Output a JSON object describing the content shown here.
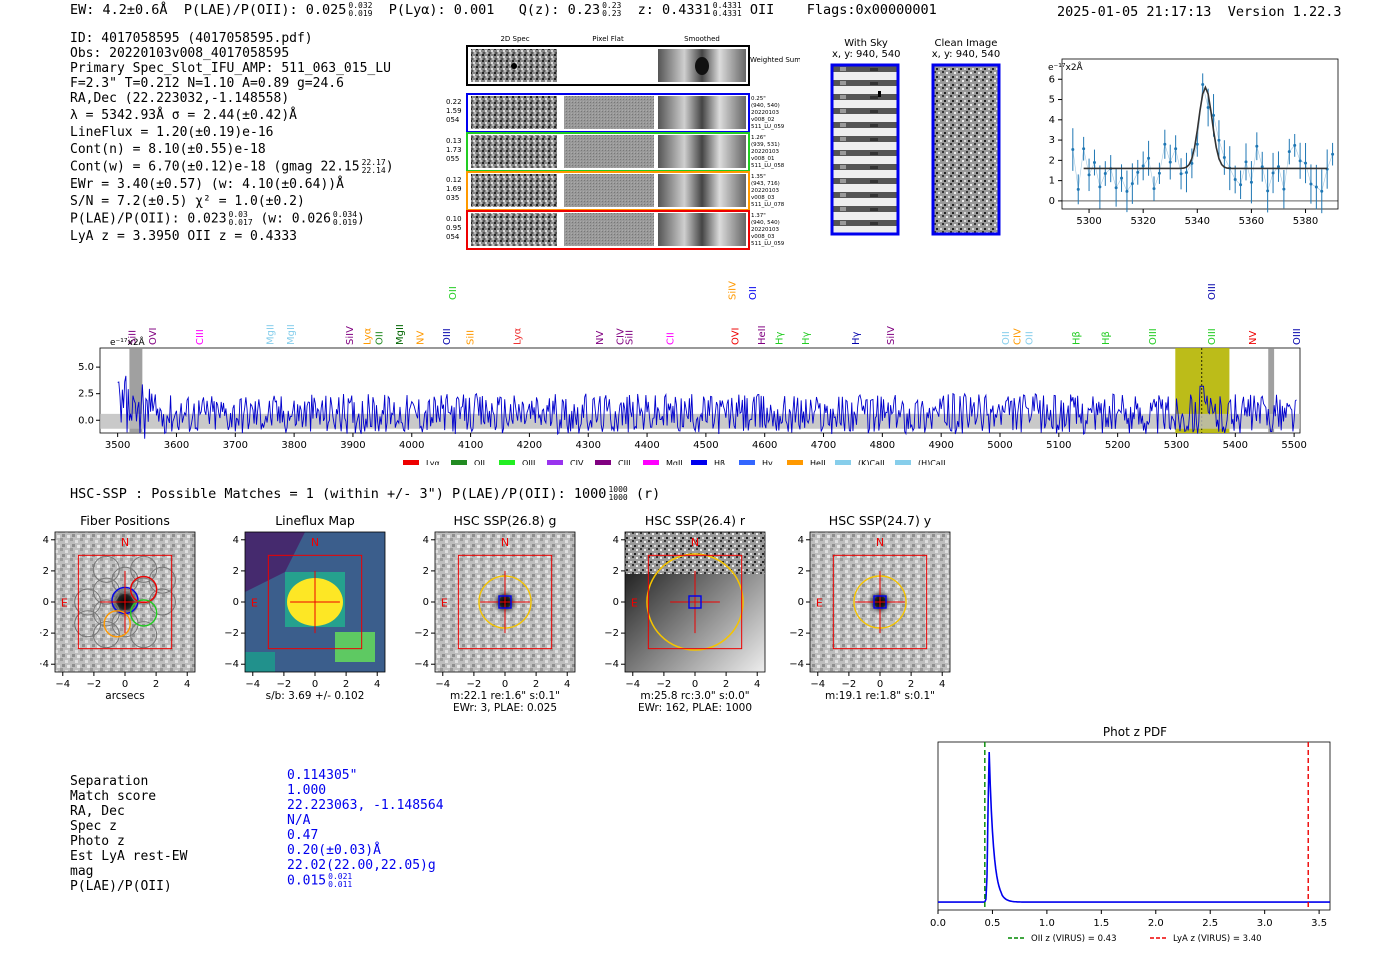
{
  "header": {
    "ew": "EW: 4.2±0.6Å",
    "plae_label": "P(LAE)/P(OII): 0.025",
    "plae_hi": "0.032",
    "plae_lo": "0.019",
    "plya": "P(Lyα): 0.001",
    "qz_label": "Q(z): 0.23",
    "qz_hi": "0.23",
    "qz_lo": "0.23",
    "z_label": "z: 0.4331",
    "z_hi": "0.4331",
    "z_lo": "0.4331",
    "z_line": "OII",
    "flags": "Flags:0x00000001",
    "timestamp": "2025-01-05 21:17:13",
    "version": "Version 1.22.3"
  },
  "detection": {
    "id": "ID: 4017058595 (4017058595.pdf)",
    "obs": "Obs: 20220103v008_4017058595",
    "primary": "Primary Spec_Slot_IFU_AMP: 511_063_015_LU",
    "params": "F=2.3\"  T=0.212  N=1.10  A=0.89  g=24.6",
    "radec": "RA,Dec (22.223032,-1.148558)",
    "lambda": "λ = 5342.93Å  σ = 2.44(±0.42)Å",
    "lineflux": "LineFlux = 1.20(±0.19)e-16",
    "contn": "Cont(n) = 8.10(±0.55)e-18",
    "contw_label": "Cont(w) = 6.70(±0.12)e-18 (gmag 22.15",
    "contw_hi": "22.17",
    "contw_lo": "22.14",
    "ewr": "EWr = 3.40(±0.57) (w: 4.10(±0.64))Å",
    "sn": "S/N = 7.2(±0.5)  χ² = 1.0(±0.2)",
    "plae_label": "P(LAE)/P(OII): 0.023",
    "plae_hi": "0.03",
    "plae_lo": "0.017",
    "plae_w_label": "(w: 0.026",
    "plae_w_hi": "0.034",
    "plae_w_lo": "0.019",
    "lya_oii": "LyA z = 3.3950  OII z = 0.4333"
  },
  "cutouts": {
    "col_2d": "2D Spec",
    "col_flat": "Pixel Flat",
    "col_smooth": "Smoothed",
    "weighted_sum": "Weighted Sum",
    "rows": [
      {
        "left": [
          "0.22",
          "1.59",
          "054"
        ],
        "right": [
          "0.25\"",
          "(940, 540)",
          "20220103",
          "v008_02",
          "511_LU_059"
        ],
        "color": "#0000ee"
      },
      {
        "left": [
          "0.13",
          "1.73",
          "055"
        ],
        "right": [
          "1.26\"",
          "(939, 531)",
          "20220103",
          "v008_01",
          "511_LU_058"
        ],
        "color": "#22cc22"
      },
      {
        "left": [
          "0.12",
          "1.69",
          "035"
        ],
        "right": [
          "1.35\"",
          "(943, 716)",
          "20220103",
          "v008_03",
          "511_LU_078"
        ],
        "color": "#ff9900"
      },
      {
        "left": [
          "0.10",
          "0.95",
          "054"
        ],
        "right": [
          "1.37\"",
          "(940, 540)",
          "20220103",
          "v008_03",
          "511_LU_059"
        ],
        "color": "#ee0000"
      }
    ]
  },
  "sky": {
    "with_sky_title": "With Sky",
    "with_sky_coords": "x, y: 940, 540",
    "clean_title": "Clean Image",
    "clean_coords": "x, y: 940, 540"
  },
  "zoom_spectrum": {
    "ylabel": "e⁻¹⁷x2Å",
    "xticks": [
      "5300",
      "5320",
      "5340",
      "5360",
      "5380"
    ],
    "yticks": [
      "0",
      "1",
      "2",
      "3",
      "4",
      "5",
      "6"
    ]
  },
  "full_spectrum": {
    "ylabel": "e⁻¹⁷x2Å",
    "xticks": [
      "3500",
      "3600",
      "3700",
      "3800",
      "3900",
      "4000",
      "4100",
      "4200",
      "4300",
      "4400",
      "4500",
      "4600",
      "4700",
      "4800",
      "4900",
      "5000",
      "5100",
      "5200",
      "5300",
      "5400",
      "5500"
    ],
    "yticks": [
      "0.0",
      "2.5",
      "5.0"
    ],
    "line_labels": [
      {
        "text": "SiII",
        "color": "#800080"
      },
      {
        "text": "OVI",
        "color": "#800080"
      },
      {
        "text": "CIII",
        "color": "#ff00ff"
      },
      {
        "text": "MgII",
        "color": "#87ceeb"
      },
      {
        "text": "MgII",
        "color": "#87ceeb"
      },
      {
        "text": "SiIV",
        "color": "#800080"
      },
      {
        "text": "Lyα",
        "color": "#ff9900"
      },
      {
        "text": "OII",
        "color": "#228b22"
      },
      {
        "text": "MgII",
        "color": "#006400"
      },
      {
        "text": "NV",
        "color": "#ff9900"
      },
      {
        "text": "OIII",
        "color": "#0000aa"
      },
      {
        "text": "SiII",
        "color": "#ff9900"
      },
      {
        "text": "Lyα",
        "color": "#ee3333"
      },
      {
        "text": "NV",
        "color": "#800080"
      },
      {
        "text": "CIV",
        "color": "#800080"
      },
      {
        "text": "SiII",
        "color": "#800080"
      },
      {
        "text": "CII",
        "color": "#ff00ff"
      },
      {
        "text": "OVI",
        "color": "#ee0000"
      },
      {
        "text": "HeII",
        "color": "#800080"
      },
      {
        "text": "Hγ",
        "color": "#22cc22"
      },
      {
        "text": "Hγ",
        "color": "#22cc22"
      },
      {
        "text": "Hγ",
        "color": "#0000aa"
      },
      {
        "text": "SiIV",
        "color": "#800080"
      },
      {
        "text": "OII",
        "color": "#87ceeb"
      },
      {
        "text": "CIV",
        "color": "#ff9900"
      },
      {
        "text": "OII",
        "color": "#87ceeb"
      },
      {
        "text": "Hβ",
        "color": "#22cc22"
      },
      {
        "text": "Hβ",
        "color": "#22cc22"
      },
      {
        "text": "OIII",
        "color": "#22cc22"
      },
      {
        "text": "OIII",
        "color": "#22cc22"
      },
      {
        "text": "NV",
        "color": "#ee0000"
      },
      {
        "text": "OIII",
        "color": "#0000aa"
      }
    ],
    "upper_labels": [
      {
        "text": "OII",
        "color": "#22cc22"
      },
      {
        "text": "SiIV",
        "color": "#ff9900"
      },
      {
        "text": "OII",
        "color": "#0000ee"
      },
      {
        "text": "OIII",
        "color": "#0000aa"
      }
    ],
    "legend": [
      {
        "text": "Lyα",
        "color": "#ee0000"
      },
      {
        "text": "OII",
        "color": "#228b22"
      },
      {
        "text": "OIII",
        "color": "#22ee22"
      },
      {
        "text": "CIV",
        "color": "#9933ee"
      },
      {
        "text": "CIII",
        "color": "#800080"
      },
      {
        "text": "MgII",
        "color": "#ff00ff"
      },
      {
        "text": "Hβ",
        "color": "#0000ee"
      },
      {
        "text": "Hγ",
        "color": "#3366ff"
      },
      {
        "text": "HeII",
        "color": "#ff9900"
      },
      {
        "text": "(K)CaII",
        "color": "#87ceeb"
      },
      {
        "text": "(H)CaII",
        "color": "#87ceeb"
      }
    ]
  },
  "hsc": {
    "summary_label": "HSC-SSP : Possible Matches = 1 (within +/- 3\")  P(LAE)/P(OII): 1000",
    "summary_hi": "1000",
    "summary_lo": "1000",
    "summary_tail": "(r)",
    "axis_ticks": [
      "−4",
      "−2",
      "0",
      "2",
      "4"
    ],
    "axis_yticks": [
      "4",
      "2",
      "0",
      "−2",
      "−4"
    ],
    "panels": [
      {
        "title": "Fiber Positions",
        "caption1": "arcsecs",
        "caption2": ""
      },
      {
        "title": "Lineflux Map",
        "caption1": "s/b: 3.69 +/- 0.102",
        "caption2": ""
      },
      {
        "title": "HSC SSP(26.8) g",
        "caption1": "m:22.1  re:1.6\"  s:0.1\"",
        "caption2": "EWr: 3, PLAE: 0.025"
      },
      {
        "title": "HSC SSP(26.4) r",
        "caption1": "m:25.8 rc:3.0\"  s:0.0\"",
        "caption2": "EWr: 162, PLAE: 1000"
      },
      {
        "title": "HSC SSP(24.7) y",
        "caption1": "m:19.1  re:1.8\"  s:0.1\"",
        "caption2": ""
      }
    ],
    "compass_n": "N",
    "compass_e": "E"
  },
  "match_table": {
    "labels": [
      "Separation",
      "Match score",
      "RA, Dec",
      "Spec z",
      "Photo z",
      "Est LyA rest-EW",
      "mag",
      "P(LAE)/P(OII)"
    ],
    "values": [
      "0.114305\"",
      "1.000",
      "22.223063, -1.148564",
      "N/A",
      "0.47",
      "0.20(±0.03)Å",
      "22.02(22.00,22.05)g",
      "0.015"
    ],
    "plae_hi": "0.021",
    "plae_lo": "0.011"
  },
  "photz": {
    "title": "Phot z PDF",
    "xticks": [
      "0.0",
      "0.5",
      "1.0",
      "1.5",
      "2.0",
      "2.5",
      "3.0",
      "3.5"
    ],
    "legend_oii": "OII z (VIRUS) = 0.43",
    "legend_lya": "LyA z (VIRUS) = 3.40",
    "oii_z": 0.43,
    "lya_z": 3.4,
    "peak_z": 0.47
  }
}
